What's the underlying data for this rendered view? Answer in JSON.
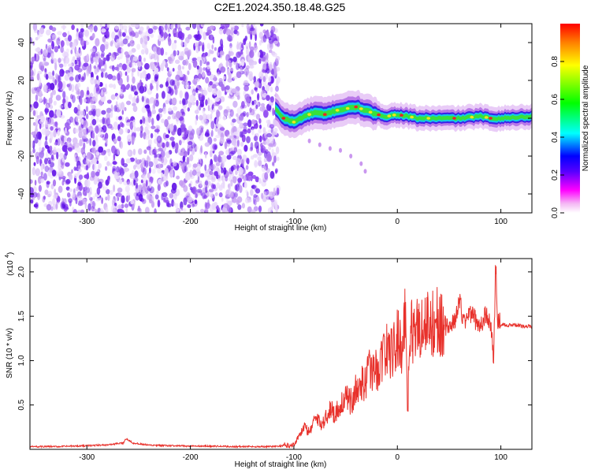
{
  "figure": {
    "title": "C2E1.2024.350.18.48.G25"
  },
  "chart_data": [
    {
      "type": "heatmap",
      "title": "C2E1.2024.350.18.48.G25",
      "xlabel": "Height of straight line (km)",
      "ylabel": "Frequency (Hz)",
      "xlim": [
        -355,
        130
      ],
      "ylim": [
        -50,
        50
      ],
      "x_ticks": [
        "-300",
        "-200",
        "-100",
        "0",
        "100"
      ],
      "x_tick_values": [
        -300,
        -200,
        -100,
        0,
        100
      ],
      "y_ticks": [
        "40",
        "20",
        "0",
        "-20",
        "-40"
      ],
      "y_tick_values": [
        40,
        20,
        0,
        -20,
        -40
      ],
      "colorbar": {
        "label": "Normalized spectral amplitude",
        "ticks": [
          "0.0",
          "0.2",
          "0.4",
          "0.6",
          "0.8"
        ],
        "tick_values": [
          0.0,
          0.2,
          0.4,
          0.6,
          0.8
        ],
        "range": [
          0,
          1
        ],
        "colormap": [
          "#ffffff",
          "#ff00ff",
          "#0000ff",
          "#00ffff",
          "#00ff00",
          "#ffff00",
          "#ff0000"
        ]
      },
      "noise_region_x": [
        -355,
        -118
      ],
      "signal_track": {
        "x": [
          -118,
          -110,
          -100,
          -90,
          -80,
          -70,
          -60,
          -50,
          -40,
          -30,
          -20,
          -10,
          0,
          10,
          20,
          40,
          60,
          80,
          90,
          100,
          130
        ],
        "y": [
          5,
          0,
          -2,
          1,
          3,
          2,
          4,
          5,
          6,
          4,
          2,
          1,
          2,
          1,
          0,
          0,
          0,
          1,
          0,
          0,
          1
        ]
      },
      "faint_trace": {
        "x": [
          -85,
          -75,
          -65,
          -55,
          -45,
          -35,
          -31
        ],
        "y": [
          -12,
          -14,
          -16,
          -17,
          -20,
          -24,
          -28
        ]
      },
      "grid": false
    },
    {
      "type": "line",
      "xlabel": "Height of straight line (km)",
      "ylabel": "SNR (10 * v/v)",
      "y_multiplier": "(x10",
      "y_multiplier_exp": "4",
      "xlim": [
        -355,
        130
      ],
      "ylim": [
        0,
        21500
      ],
      "x_ticks": [
        "-300",
        "-200",
        "-100",
        "0",
        "100"
      ],
      "x_tick_values": [
        -300,
        -200,
        -100,
        0,
        100
      ],
      "y_ticks": [
        "0.5",
        "1.0",
        "1.5",
        "2.0"
      ],
      "y_tick_values": [
        5000,
        10000,
        15000,
        20000
      ],
      "color": "#e8312b",
      "grid": false,
      "series": [
        {
          "x": [
            -355,
            -330,
            -300,
            -280,
            -265,
            -262,
            -255,
            -240,
            -220,
            -200,
            -180,
            -160,
            -140,
            -120,
            -110,
            -100,
            -95,
            -90,
            -85,
            -80,
            -75,
            -70,
            -65,
            -60,
            -55,
            -50,
            -45,
            -40,
            -35,
            -30,
            -25,
            -20,
            -15,
            -10,
            -5,
            0,
            5,
            8,
            10,
            12,
            15,
            20,
            30,
            40,
            50,
            55,
            60,
            65,
            70,
            75,
            80,
            85,
            90,
            93,
            95,
            97,
            100,
            110,
            120,
            130
          ],
          "y": [
            300,
            300,
            400,
            500,
            700,
            1200,
            700,
            450,
            400,
            350,
            350,
            300,
            300,
            300,
            400,
            500,
            1500,
            2500,
            1800,
            3500,
            2800,
            3200,
            4500,
            3800,
            5000,
            5500,
            5200,
            6500,
            7000,
            7800,
            9000,
            8500,
            10000,
            11000,
            10500,
            12000,
            11500,
            15500,
            4000,
            12500,
            13000,
            13500,
            13800,
            14000,
            13700,
            14200,
            16500,
            14000,
            15500,
            14500,
            13800,
            15000,
            14200,
            10000,
            21000,
            14500,
            14000,
            14000,
            13900,
            13800
          ]
        }
      ]
    }
  ]
}
